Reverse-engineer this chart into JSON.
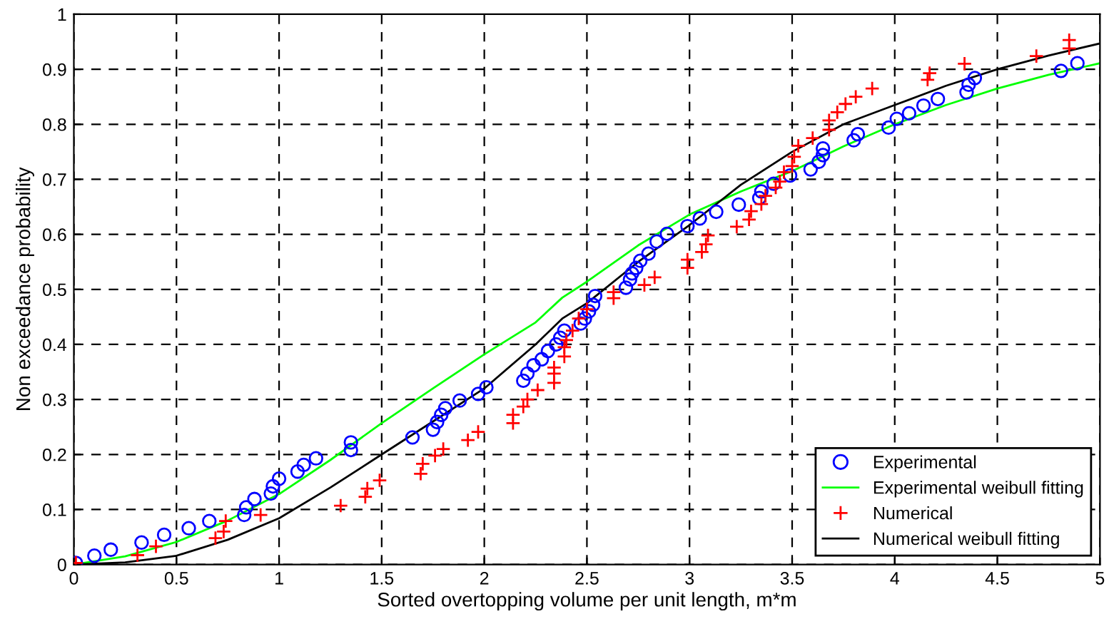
{
  "chart_data": {
    "type": "scatter",
    "xlabel": "Sorted overtopping volume per unit length, m*m",
    "ylabel": "Non exceedance probability",
    "xlim": [
      0,
      5
    ],
    "ylim": [
      0,
      1
    ],
    "xticks": [
      0,
      0.5,
      1,
      1.5,
      2,
      2.5,
      3,
      3.5,
      4,
      4.5,
      5
    ],
    "yticks": [
      0,
      0.1,
      0.2,
      0.3,
      0.4,
      0.5,
      0.6,
      0.7,
      0.8,
      0.9,
      1
    ],
    "grid": true,
    "legend": "bottom right",
    "series": [
      {
        "name": "Experimental",
        "marker": "circle",
        "color": "#0000ff",
        "x": [
          0.01,
          0.1,
          0.18,
          0.33,
          0.44,
          0.56,
          0.66,
          0.83,
          0.84,
          0.88,
          0.96,
          0.97,
          1.0,
          1.09,
          1.12,
          1.18,
          1.35,
          1.35,
          1.65,
          1.75,
          1.77,
          1.79,
          1.81,
          1.88,
          1.97,
          2.01,
          2.19,
          2.21,
          2.24,
          2.28,
          2.31,
          2.35,
          2.37,
          2.39,
          2.47,
          2.49,
          2.51,
          2.53,
          2.54,
          2.69,
          2.71,
          2.72,
          2.74,
          2.76,
          2.8,
          2.84,
          2.89,
          2.99,
          3.05,
          3.13,
          3.24,
          3.34,
          3.35,
          3.41,
          3.49,
          3.59,
          3.63,
          3.65,
          3.65,
          3.8,
          3.82,
          3.97,
          4.01,
          4.07,
          4.14,
          4.21,
          4.35,
          4.36,
          4.39,
          4.81,
          4.89
        ],
        "values": [
          0.003,
          0.016,
          0.027,
          0.04,
          0.054,
          0.066,
          0.079,
          0.09,
          0.104,
          0.119,
          0.129,
          0.142,
          0.156,
          0.169,
          0.181,
          0.193,
          0.208,
          0.222,
          0.231,
          0.245,
          0.259,
          0.272,
          0.284,
          0.298,
          0.31,
          0.322,
          0.334,
          0.347,
          0.362,
          0.373,
          0.388,
          0.4,
          0.412,
          0.425,
          0.438,
          0.447,
          0.46,
          0.472,
          0.488,
          0.503,
          0.518,
          0.529,
          0.539,
          0.552,
          0.565,
          0.587,
          0.601,
          0.615,
          0.629,
          0.641,
          0.654,
          0.666,
          0.678,
          0.692,
          0.707,
          0.718,
          0.732,
          0.744,
          0.756,
          0.771,
          0.782,
          0.794,
          0.81,
          0.82,
          0.834,
          0.846,
          0.858,
          0.872,
          0.884,
          0.897,
          0.911
        ]
      },
      {
        "name": "Experimental weibull fitting",
        "type": "line",
        "marker": "none",
        "line_style": "solid",
        "color": "#00ff00",
        "x": [
          0,
          0.25,
          0.5,
          0.75,
          1,
          1.25,
          1.5,
          1.75,
          2,
          2.25,
          2.38,
          2.5,
          2.75,
          3,
          3.25,
          3.5,
          3.75,
          4,
          4.25,
          4.5,
          4.75,
          5
        ],
        "values": [
          0,
          0.015,
          0.041,
          0.08,
          0.128,
          0.19,
          0.257,
          0.32,
          0.382,
          0.44,
          0.485,
          0.514,
          0.58,
          0.636,
          0.678,
          0.715,
          0.76,
          0.8,
          0.835,
          0.865,
          0.89,
          0.911
        ]
      },
      {
        "name": "Numerical",
        "marker": "cross",
        "color": "#ff0000",
        "x": [
          0.01,
          0.31,
          0.4,
          0.69,
          0.73,
          0.74,
          0.91,
          1.3,
          1.42,
          1.43,
          1.49,
          1.69,
          1.7,
          1.76,
          1.8,
          1.92,
          1.97,
          2.14,
          2.14,
          2.19,
          2.21,
          2.26,
          2.34,
          2.34,
          2.34,
          2.39,
          2.39,
          2.4,
          2.43,
          2.46,
          2.5,
          2.63,
          2.63,
          2.78,
          2.83,
          2.99,
          2.99,
          3.06,
          3.08,
          3.09,
          3.23,
          3.29,
          3.3,
          3.35,
          3.37,
          3.42,
          3.44,
          3.46,
          3.5,
          3.51,
          3.53,
          3.6,
          3.68,
          3.68,
          3.72,
          3.76,
          3.81,
          3.89,
          4.16,
          4.17,
          4.34,
          4.69,
          4.85,
          4.85
        ],
        "values": [
          0.003,
          0.017,
          0.033,
          0.048,
          0.06,
          0.079,
          0.09,
          0.107,
          0.123,
          0.138,
          0.153,
          0.165,
          0.183,
          0.198,
          0.21,
          0.226,
          0.241,
          0.257,
          0.272,
          0.287,
          0.3,
          0.317,
          0.33,
          0.347,
          0.358,
          0.378,
          0.395,
          0.408,
          0.425,
          0.447,
          0.464,
          0.484,
          0.495,
          0.508,
          0.522,
          0.539,
          0.554,
          0.568,
          0.582,
          0.598,
          0.614,
          0.627,
          0.642,
          0.655,
          0.67,
          0.685,
          0.696,
          0.713,
          0.724,
          0.741,
          0.761,
          0.775,
          0.79,
          0.807,
          0.822,
          0.837,
          0.85,
          0.865,
          0.881,
          0.893,
          0.91,
          0.924,
          0.938,
          0.953
        ]
      },
      {
        "name": "Numerical weibull fitting",
        "type": "line",
        "marker": "none",
        "line_style": "solid",
        "color": "#000000",
        "x": [
          0,
          0.25,
          0.5,
          0.75,
          1,
          1.25,
          1.5,
          1.75,
          2,
          2.25,
          2.38,
          2.5,
          2.75,
          3,
          3.25,
          3.5,
          3.75,
          4,
          4.25,
          4.5,
          4.75,
          5
        ],
        "values": [
          0,
          0.004,
          0.016,
          0.045,
          0.084,
          0.14,
          0.2,
          0.26,
          0.32,
          0.4,
          0.447,
          0.475,
          0.55,
          0.617,
          0.69,
          0.75,
          0.8,
          0.835,
          0.87,
          0.9,
          0.925,
          0.947
        ]
      }
    ]
  }
}
